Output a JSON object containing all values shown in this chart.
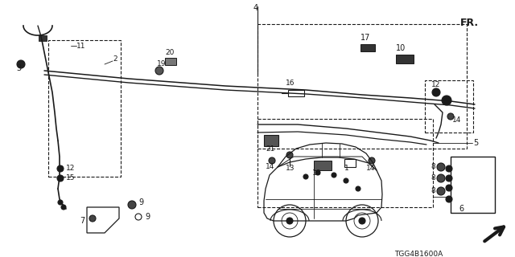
{
  "bg_color": "#ffffff",
  "line_color": "#1a1a1a",
  "diagram_code": "TGG4B1600A",
  "fig_w": 6.4,
  "fig_h": 3.2,
  "dpi": 100
}
